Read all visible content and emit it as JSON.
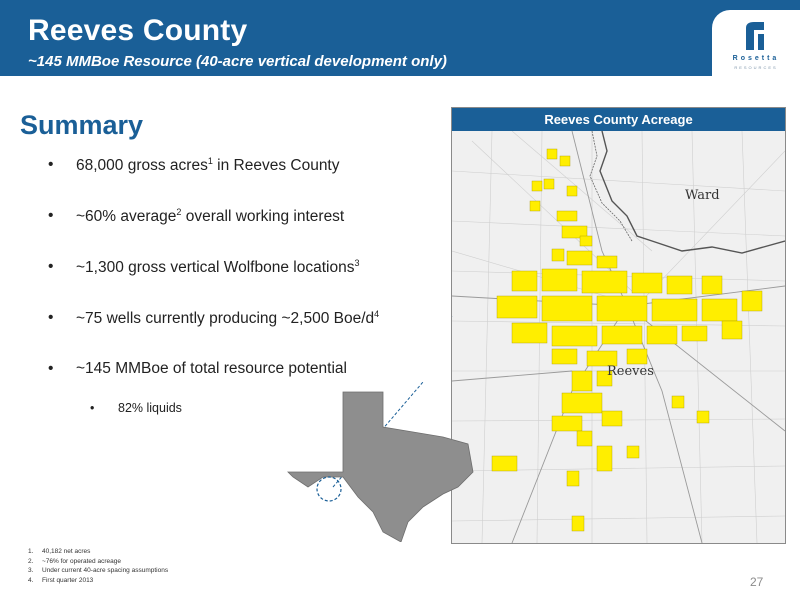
{
  "header": {
    "title": "Reeves County",
    "subtitle": "~145 MMBoe Resource (40-acre vertical development only)"
  },
  "logo": {
    "name": "Rosetta",
    "tagline": "RESOURCES"
  },
  "summary": {
    "heading": "Summary",
    "bullets": [
      {
        "text": "68,000 gross acres",
        "sup": "1",
        "after": " in Reeves County"
      },
      {
        "text": "~60% average",
        "sup": "2",
        "after": " overall working interest"
      },
      {
        "text": "~1,300 gross vertical Wolfbone locations",
        "sup": "3",
        "after": ""
      },
      {
        "text": "~75 wells currently producing ~2,500 Boe/d",
        "sup": "4",
        "after": ""
      },
      {
        "text": "~145 MMBoe of total resource potential",
        "sup": "",
        "after": ""
      }
    ],
    "sub_bullet": "82% liquids"
  },
  "map": {
    "title": "Reeves County Acreage",
    "labels": {
      "ward": "Ward",
      "reeves": "Reeves"
    }
  },
  "footnotes": [
    {
      "num": "1.",
      "text": "40,182 net acres"
    },
    {
      "num": "2.",
      "text": "~76% for operated acreage"
    },
    {
      "num": "3.",
      "text": "Under current 40-acre spacing assumptions"
    },
    {
      "num": "4.",
      "text": "First quarter 2013"
    }
  ],
  "page_number": "27",
  "colors": {
    "brand_blue": "#1a5f97",
    "acreage_yellow": "#ffee00",
    "texas_gray": "#8e8e8e"
  }
}
